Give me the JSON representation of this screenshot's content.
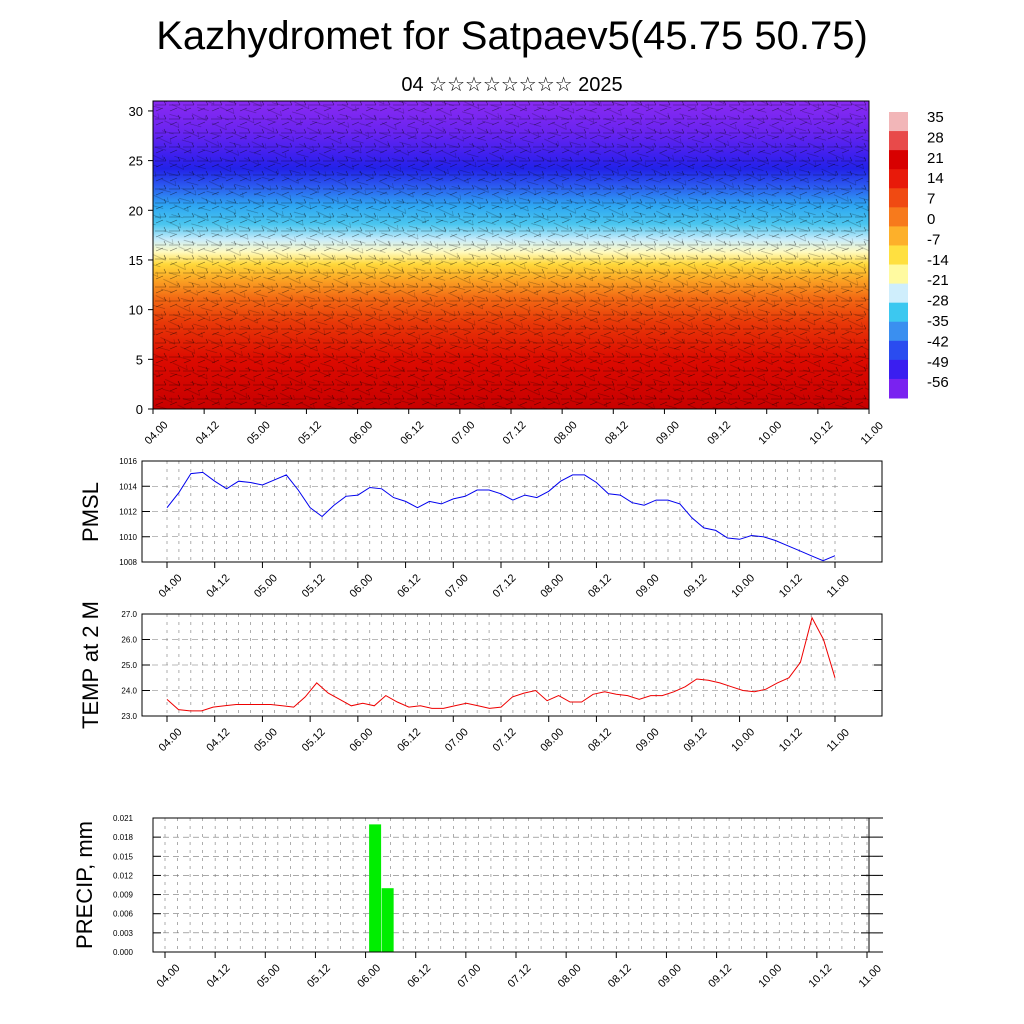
{
  "title": "Kazhydromet for Satpaev5(45.75 50.75)",
  "subtitle": "04 ☆☆☆☆☆☆☆☆ 2025",
  "chart_data": [
    {
      "type": "heatmap",
      "name": "temperature-wind-cross-section",
      "y_ticks": [
        0,
        5,
        10,
        15,
        20,
        25,
        30
      ],
      "ylim": [
        0,
        31
      ],
      "x_ticks": [
        "04.00",
        "04.12",
        "05.00",
        "05.12",
        "06.00",
        "06.12",
        "07.00",
        "07.12",
        "08.00",
        "08.12",
        "09.00",
        "09.12",
        "10.00",
        "10.12",
        "11.00"
      ],
      "colorbar_labels": [
        "35",
        "28",
        "21",
        "14",
        "7",
        "0",
        "-7",
        "-14",
        "-21",
        "-28",
        "-35",
        "-42",
        "-49",
        "-56"
      ],
      "colorbar_colors": [
        "#f2b6b8",
        "#e84a4a",
        "#d80000",
        "#e81a0a",
        "#f04a12",
        "#f77a1c",
        "#fdb02a",
        "#ffe040",
        "#fffaa0",
        "#cfeefc",
        "#3cc8f0",
        "#3a8ff0",
        "#2a4cf0",
        "#3a1ef0",
        "#7a22f0"
      ]
    },
    {
      "type": "line",
      "name": "pmsl",
      "ylabel": "PMSL",
      "yticks": [
        "1016",
        "1014",
        "1012",
        "1010",
        "1008"
      ],
      "ylim": [
        1008,
        1016
      ],
      "x_ticks": [
        "04.00",
        "04.12",
        "05.00",
        "05.12",
        "06.00",
        "06.12",
        "07.00",
        "07.12",
        "08.00",
        "08.12",
        "09.00",
        "09.12",
        "10.00",
        "10.12",
        "11.00"
      ],
      "values": [
        1012.3,
        1013.5,
        1015.0,
        1015.1,
        1014.4,
        1013.8,
        1014.4,
        1014.3,
        1014.1,
        1014.5,
        1014.9,
        1013.7,
        1012.3,
        1011.6,
        1012.5,
        1013.2,
        1013.3,
        1013.9,
        1013.8,
        1013.1,
        1012.8,
        1012.3,
        1012.8,
        1012.6,
        1013.0,
        1013.2,
        1013.7,
        1013.7,
        1013.4,
        1012.9,
        1013.3,
        1013.1,
        1013.6,
        1014.4,
        1014.9,
        1014.9,
        1014.3,
        1013.4,
        1013.3,
        1012.7,
        1012.5,
        1012.9,
        1012.9,
        1012.6,
        1011.5,
        1010.7,
        1010.5,
        1009.9,
        1009.8,
        1010.1,
        1010.0,
        1009.7,
        1009.3,
        1008.9,
        1008.5,
        1008.1,
        1008.5
      ]
    },
    {
      "type": "line",
      "name": "temp-2m",
      "ylabel": "TEMP at 2 M",
      "yticks": [
        "27.0",
        "26.0",
        "25.0",
        "24.0",
        "23.0"
      ],
      "ylim": [
        23,
        27
      ],
      "x_ticks": [
        "04.00",
        "04.12",
        "05.00",
        "05.12",
        "06.00",
        "06.12",
        "07.00",
        "07.12",
        "08.00",
        "08.12",
        "09.00",
        "09.12",
        "10.00",
        "10.12",
        "11.00"
      ],
      "values": [
        23.65,
        23.25,
        23.2,
        23.2,
        23.35,
        23.4,
        23.45,
        23.45,
        23.45,
        23.45,
        23.4,
        23.35,
        23.75,
        24.3,
        23.9,
        23.65,
        23.4,
        23.5,
        23.4,
        23.8,
        23.55,
        23.35,
        23.4,
        23.3,
        23.3,
        23.4,
        23.5,
        23.4,
        23.3,
        23.35,
        23.75,
        23.9,
        24.0,
        23.6,
        23.8,
        23.55,
        23.55,
        23.85,
        23.95,
        23.85,
        23.8,
        23.65,
        23.8,
        23.8,
        23.95,
        24.15,
        24.45,
        24.4,
        24.3,
        24.15,
        24.0,
        23.95,
        24.05,
        24.3,
        24.5,
        25.1,
        26.85,
        26.0,
        24.5
      ]
    },
    {
      "type": "bar",
      "name": "precip",
      "ylabel": "PRECIP, mm",
      "yticks": [
        "0.021",
        "0.018",
        "0.015",
        "0.012",
        "0.009",
        "0.006",
        "0.003",
        "0.000"
      ],
      "ylim": [
        0,
        0.021
      ],
      "x_ticks": [
        "04.00",
        "04.12",
        "05.00",
        "05.12",
        "06.00",
        "06.12",
        "07.00",
        "07.12",
        "08.00",
        "08.12",
        "09.00",
        "09.12",
        "10.00",
        "10.12",
        "11.00"
      ],
      "bars": [
        {
          "x_hours": 51,
          "value": 0.02
        },
        {
          "x_hours": 54,
          "value": 0.01
        }
      ],
      "bar_color": "#00ee00"
    }
  ]
}
